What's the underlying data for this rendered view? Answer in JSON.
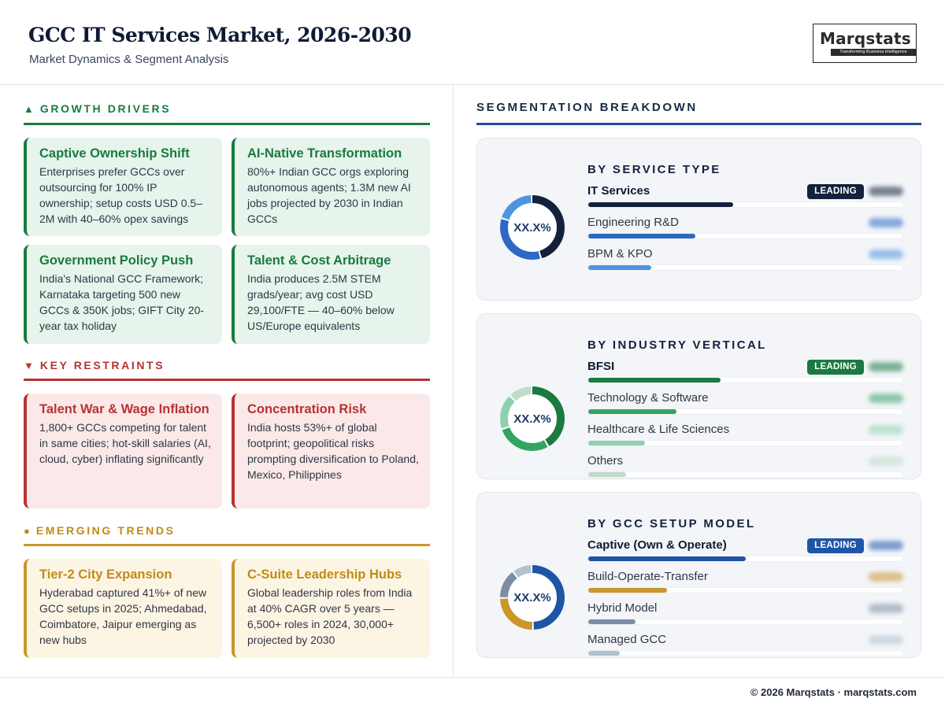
{
  "header": {
    "title": "GCC IT Services Market, 2026-2030",
    "subtitle": "Market Dynamics & Segment Analysis",
    "logo_text": "Marqstats",
    "logo_tagline": "Transforming Business Intelligence"
  },
  "drivers": {
    "heading": "GROWTH DRIVERS",
    "symbol": "▲",
    "cards": [
      {
        "title": "Captive Ownership Shift",
        "body": "Enterprises prefer GCCs over outsourcing for 100% IP ownership; setup costs USD 0.5–2M with 40–60% opex savings"
      },
      {
        "title": "AI-Native Transformation",
        "body": "80%+ Indian GCC orgs exploring autonomous agents; 1.3M new AI jobs projected by 2030 in Indian GCCs"
      },
      {
        "title": "Government Policy Push",
        "body": "India's National GCC Framework; Karnataka targeting 500 new GCCs & 350K jobs; GIFT City 20-year tax holiday"
      },
      {
        "title": "Talent & Cost Arbitrage",
        "body": "India produces 2.5M STEM grads/year; avg cost USD 29,100/FTE — 40–60% below US/Europe equivalents"
      }
    ]
  },
  "restraints": {
    "heading": "KEY RESTRAINTS",
    "symbol": "▼",
    "cards": [
      {
        "title": "Talent War & Wage Inflation",
        "body": "1,800+ GCCs competing for talent in same cities; hot-skill salaries (AI, cloud, cyber) inflating significantly"
      },
      {
        "title": "Concentration Risk",
        "body": "India hosts 53%+ of global footprint; geopolitical risks prompting diversification to Poland, Mexico, Philippines"
      }
    ]
  },
  "trends": {
    "heading": "EMERGING TRENDS",
    "symbol": "●",
    "cards": [
      {
        "title": "Tier-2 City Expansion",
        "body": "Hyderabad captured 41%+ of new GCC setups in 2025; Ahmedabad, Coimbatore, Jaipur emerging as new hubs"
      },
      {
        "title": "C-Suite Leadership Hubs",
        "body": "Global leadership roles from India at 40% CAGR over 5 years — 6,500+ roles in 2024, 30,000+ projected by 2030"
      }
    ]
  },
  "segmentation": {
    "heading": "SEGMENTATION BREAKDOWN",
    "leading_label": "LEADING",
    "panels": [
      {
        "title": "BY SERVICE TYPE",
        "center_label": "XX.X%",
        "badge_color": "#14213d",
        "items": [
          {
            "label": "IT Services",
            "share": 0.46,
            "color": "#14213d",
            "leading": true
          },
          {
            "label": "Engineering R&D",
            "share": 0.34,
            "color": "#2d69c4",
            "leading": false
          },
          {
            "label": "BPM & KPO",
            "share": 0.2,
            "color": "#4f94df",
            "leading": false
          }
        ]
      },
      {
        "title": "BY INDUSTRY VERTICAL",
        "center_label": "XX.X%",
        "badge_color": "#1a7a40",
        "items": [
          {
            "label": "BFSI",
            "share": 0.42,
            "color": "#1a7a40",
            "leading": true
          },
          {
            "label": "Technology & Software",
            "share": 0.28,
            "color": "#34a463",
            "leading": false
          },
          {
            "label": "Healthcare & Life Sciences",
            "share": 0.18,
            "color": "#8fd1ac",
            "leading": false
          },
          {
            "label": "Others",
            "share": 0.12,
            "color": "#bfdccb",
            "leading": false
          }
        ]
      },
      {
        "title": "BY GCC SETUP MODEL",
        "center_label": "XX.X%",
        "badge_color": "#1f55a6",
        "items": [
          {
            "label": "Captive (Own & Operate)",
            "share": 0.5,
            "color": "#1f55a6",
            "leading": true
          },
          {
            "label": "Build-Operate-Transfer",
            "share": 0.25,
            "color": "#c99629",
            "leading": false
          },
          {
            "label": "Hybrid Model",
            "share": 0.15,
            "color": "#7c8ea6",
            "leading": false
          },
          {
            "label": "Managed GCC",
            "share": 0.1,
            "color": "#b3c2d1",
            "leading": false
          }
        ]
      }
    ]
  },
  "footer": {
    "text": "© 2026 Marqstats · marqstats.com"
  }
}
